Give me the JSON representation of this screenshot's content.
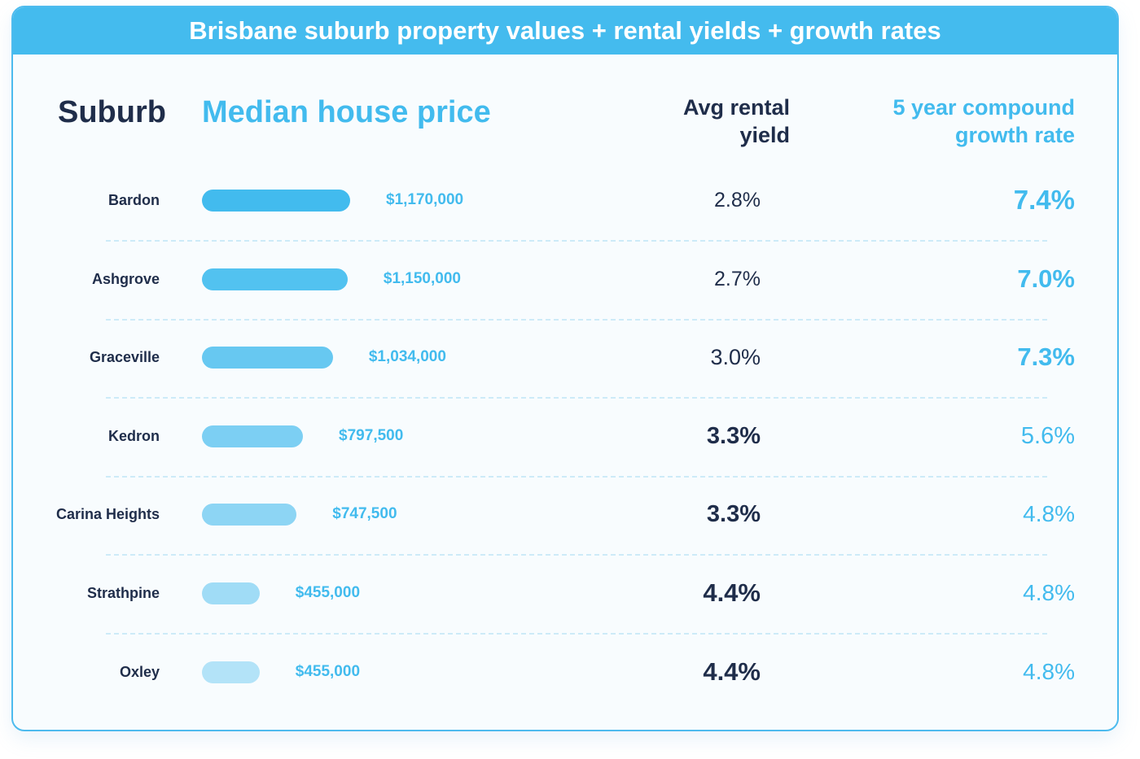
{
  "chart_data": {
    "type": "table",
    "title": "Brisbane suburb property values + rental yields + growth rates",
    "columns": [
      "Suburb",
      "Median house price",
      "Avg rental yield",
      "5 year compound growth rate"
    ],
    "rows": [
      {
        "suburb": "Bardon",
        "price": 1170000,
        "price_label": "$1,170,000",
        "yield": "2.8%",
        "growth": "7.4%"
      },
      {
        "suburb": "Ashgrove",
        "price": 1150000,
        "price_label": "$1,150,000",
        "yield": "2.7%",
        "growth": "7.0%"
      },
      {
        "suburb": "Graceville",
        "price": 1034000,
        "price_label": "$1,034,000",
        "yield": "3.0%",
        "growth": "7.3%"
      },
      {
        "suburb": "Kedron",
        "price": 797500,
        "price_label": "$797,500",
        "yield": "3.3%",
        "growth": "5.6%"
      },
      {
        "suburb": "Carina Heights",
        "price": 747500,
        "price_label": "$747,500",
        "yield": "3.3%",
        "growth": "4.8%"
      },
      {
        "suburb": "Strathpine",
        "price": 455000,
        "price_label": "$455,000",
        "yield": "4.4%",
        "growth": "4.8%"
      },
      {
        "suburb": "Oxley",
        "price": 455000,
        "price_label": "$455,000",
        "yield": "4.4%",
        "growth": "4.8%"
      }
    ],
    "colors": {
      "accent": "#42bbee",
      "dark": "#1f2d4a",
      "bar_gradient": [
        "#42bbee",
        "#52c2f0",
        "#67c8f1",
        "#7ccff3",
        "#8dd5f4",
        "#a0dcf6",
        "#b3e3f8"
      ]
    }
  },
  "header": {
    "title": "Brisbane suburb property values + rental yields + growth rates"
  },
  "columns": {
    "suburb": "Suburb",
    "price": "Median house price",
    "yield": "Avg rental yield",
    "growth": "5 year compound growth rate"
  }
}
